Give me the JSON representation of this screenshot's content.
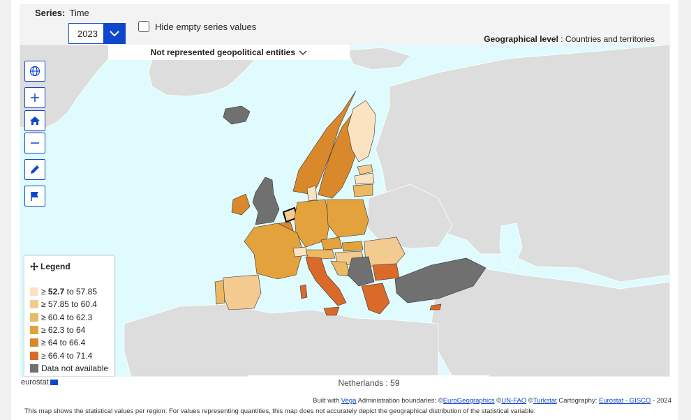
{
  "series": {
    "label": "Series:",
    "value": "Time"
  },
  "year_select": {
    "value": "2023"
  },
  "hide_empty": {
    "label": "Hide empty series values",
    "checked": false
  },
  "geo_level": {
    "label": "Geographical level",
    "value": ": Countries and territories"
  },
  "not_represented": {
    "label": "Not represented geopolitical entities"
  },
  "controls": [
    {
      "name": "globe-button",
      "icon": "globe-icon"
    },
    {
      "name": "zoom-in-button",
      "icon": "plus-icon"
    },
    {
      "name": "home-button",
      "icon": "home-icon"
    },
    {
      "name": "zoom-out-button",
      "icon": "minus-icon"
    },
    {
      "name": "draw-button",
      "icon": "pencil-icon"
    },
    {
      "name": "flag-button",
      "icon": "flag-icon"
    }
  ],
  "legend": {
    "title": "Legend",
    "items": [
      {
        "prefix": "≥ ",
        "bold": "52.7",
        "rest": " to 57.85",
        "color": "#fbe3c2"
      },
      {
        "prefix": "≥ ",
        "bold": "",
        "rest": "57.85 to 60.4",
        "color": "#f3ca8f"
      },
      {
        "prefix": "≥ ",
        "bold": "",
        "rest": "60.4 to 62.3",
        "color": "#ebb863"
      },
      {
        "prefix": "≥ ",
        "bold": "",
        "rest": "62.3 to 64",
        "color": "#e3a23b"
      },
      {
        "prefix": "≥ ",
        "bold": "",
        "rest": "64 to 66.4",
        "color": "#d9882b"
      },
      {
        "prefix": "≥ ",
        "bold": "",
        "rest": "66.4 to 71.4",
        "color": "#d96a2a"
      },
      {
        "prefix": "",
        "bold": "",
        "rest": "Data not available",
        "color": "#707070"
      }
    ]
  },
  "tooltip": {
    "text": "Netherlands : 59"
  },
  "logo": {
    "text": "eurostat"
  },
  "credits": {
    "built_with": "Built with",
    "vega": "Vega",
    "admin": " Administration boundaries: ©",
    "eurogeographics": "EuroGeographics",
    "copy1": " ©",
    "unfao": "UN-FAO",
    "copy2": " ©",
    "turkstat": "Turkstat",
    "cartography": " Cartography: ",
    "gisco": "Eurostat - GISCO",
    "year": " - 2024"
  },
  "note": {
    "text": "This map shows the statistical values per region: For values representing quantities, this map does not accurately depict the geographical distribution of the statistical variable."
  },
  "colors": {
    "sea": "#e0fbfd",
    "land_other": "#dddddd",
    "no_data": "#707070",
    "accent": "#0e47cb"
  }
}
